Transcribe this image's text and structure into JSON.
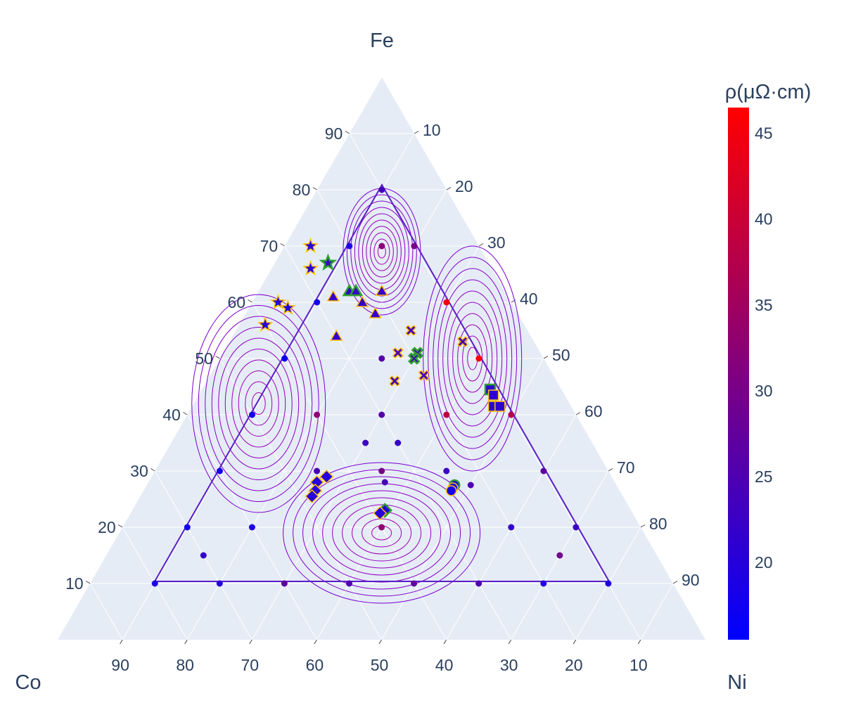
{
  "chart_data": {
    "type": "ternary-scatter-contour",
    "axes": {
      "top": {
        "title": "Fe",
        "ticks": [
          10,
          20,
          30,
          40,
          50,
          60,
          70,
          80,
          90
        ]
      },
      "left": {
        "title": "Co",
        "ticks": [
          10,
          20,
          30,
          40,
          50,
          60,
          70,
          80,
          90
        ]
      },
      "right": {
        "title": "Ni",
        "ticks": [
          10,
          20,
          30,
          40,
          50,
          60,
          70,
          80,
          90
        ]
      }
    },
    "background_color": "#e5ecf6",
    "grid": true,
    "colorbar": {
      "title": "ρ(μΩ·cm)",
      "range": [
        15.5,
        46.5
      ],
      "ticks": [
        20,
        25,
        30,
        35,
        40,
        45
      ],
      "colorscale": [
        "#0000ff",
        "#ff0000"
      ],
      "position": "right"
    },
    "grid_points": [
      {
        "fe": 80,
        "co": 10,
        "ni": 10,
        "rho": 24
      },
      {
        "fe": 70,
        "co": 20,
        "ni": 10,
        "rho": 19
      },
      {
        "fe": 70,
        "co": 10,
        "ni": 20,
        "rho": 30
      },
      {
        "fe": 70,
        "co": 15,
        "ni": 15,
        "rho": 32
      },
      {
        "fe": 60,
        "co": 30,
        "ni": 10,
        "rho": 18
      },
      {
        "fe": 60,
        "co": 10,
        "ni": 30,
        "rho": 45
      },
      {
        "fe": 50,
        "co": 40,
        "ni": 10,
        "rho": 17
      },
      {
        "fe": 50,
        "co": 10,
        "ni": 40,
        "rho": 46
      },
      {
        "fe": 50,
        "co": 25,
        "ni": 25,
        "rho": 26
      },
      {
        "fe": 40,
        "co": 50,
        "ni": 10,
        "rho": 18
      },
      {
        "fe": 40,
        "co": 10,
        "ni": 50,
        "rho": 38
      },
      {
        "fe": 40,
        "co": 30,
        "ni": 30,
        "rho": 26
      },
      {
        "fe": 40,
        "co": 40,
        "ni": 20,
        "rho": 33
      },
      {
        "fe": 40,
        "co": 20,
        "ni": 40,
        "rho": 38
      },
      {
        "fe": 35,
        "co": 35,
        "ni": 30,
        "rho": 23
      },
      {
        "fe": 35,
        "co": 30,
        "ni": 35,
        "rho": 22
      },
      {
        "fe": 30,
        "co": 60,
        "ni": 10,
        "rho": 18
      },
      {
        "fe": 30,
        "co": 10,
        "ni": 60,
        "rho": 27
      },
      {
        "fe": 30,
        "co": 35,
        "ni": 35,
        "rho": 30
      },
      {
        "fe": 30,
        "co": 25,
        "ni": 45,
        "rho": 23
      },
      {
        "fe": 30,
        "co": 45,
        "ni": 25,
        "rho": 24
      },
      {
        "fe": 20,
        "co": 70,
        "ni": 10,
        "rho": 18
      },
      {
        "fe": 20,
        "co": 10,
        "ni": 70,
        "rho": 23
      },
      {
        "fe": 20,
        "co": 60,
        "ni": 20,
        "rho": 19
      },
      {
        "fe": 20,
        "co": 20,
        "ni": 60,
        "rho": 22
      },
      {
        "fe": 20,
        "co": 40,
        "ni": 40,
        "rho": 33
      },
      {
        "fe": 15,
        "co": 70,
        "ni": 15,
        "rho": 22
      },
      {
        "fe": 15,
        "co": 15,
        "ni": 70,
        "rho": 29
      },
      {
        "fe": 10,
        "co": 80,
        "ni": 10,
        "rho": 19
      },
      {
        "fe": 10,
        "co": 70,
        "ni": 20,
        "rho": 20
      },
      {
        "fe": 10,
        "co": 60,
        "ni": 30,
        "rho": 27
      },
      {
        "fe": 10,
        "co": 50,
        "ni": 40,
        "rho": 25
      },
      {
        "fe": 10,
        "co": 40,
        "ni": 50,
        "rho": 27
      },
      {
        "fe": 10,
        "co": 30,
        "ni": 60,
        "rho": 25
      },
      {
        "fe": 10,
        "co": 20,
        "ni": 70,
        "rho": 20
      },
      {
        "fe": 10,
        "co": 10,
        "ni": 80,
        "rho": 19
      },
      {
        "fe": 28,
        "co": 35.5,
        "ni": 36.5,
        "rho": 24
      },
      {
        "fe": 27.5,
        "co": 22.5,
        "ni": 50,
        "rho": 25
      }
    ],
    "marker_groups": [
      {
        "symbol": "star",
        "points": [
          {
            "fe": 70,
            "co": 26,
            "ni": 4,
            "rho": 20
          },
          {
            "fe": 66,
            "co": 28,
            "ni": 6,
            "rho": 20
          },
          {
            "fe": 60,
            "co": 36,
            "ni": 4,
            "rho": 20
          },
          {
            "fe": 59,
            "co": 35,
            "ni": 6,
            "rho": 20
          },
          {
            "fe": 56,
            "co": 40,
            "ni": 4,
            "rho": 20
          },
          {
            "fe": 67,
            "co": 24.8,
            "ni": 8.2,
            "rho": 22,
            "highlight": true
          }
        ]
      },
      {
        "symbol": "triangle-up",
        "points": [
          {
            "fe": 62,
            "co": 24,
            "ni": 14,
            "rho": 22,
            "highlight": true
          },
          {
            "fe": 62,
            "co": 23,
            "ni": 15,
            "rho": 22,
            "highlight": true
          },
          {
            "fe": 61,
            "co": 27,
            "ni": 12,
            "rho": 22
          },
          {
            "fe": 62,
            "co": 19,
            "ni": 19,
            "rho": 22
          },
          {
            "fe": 60,
            "co": 23,
            "ni": 17,
            "rho": 22
          },
          {
            "fe": 58,
            "co": 22,
            "ni": 20,
            "rho": 22
          },
          {
            "fe": 54,
            "co": 30,
            "ni": 16,
            "rho": 22
          }
        ]
      },
      {
        "symbol": "x",
        "points": [
          {
            "fe": 55,
            "co": 18,
            "ni": 27,
            "rho": 24
          },
          {
            "fe": 51,
            "co": 22,
            "ni": 27,
            "rho": 24
          },
          {
            "fe": 51,
            "co": 19,
            "ni": 30,
            "rho": 24,
            "highlight": true
          },
          {
            "fe": 50,
            "co": 20,
            "ni": 30,
            "rho": 24,
            "highlight": true
          },
          {
            "fe": 47,
            "co": 20,
            "ni": 33,
            "rho": 24
          },
          {
            "fe": 46,
            "co": 25,
            "ni": 29,
            "rho": 24
          },
          {
            "fe": 53,
            "co": 11,
            "ni": 36,
            "rho": 24
          }
        ]
      },
      {
        "symbol": "square",
        "points": [
          {
            "fe": 44.5,
            "co": 11,
            "ni": 44.5,
            "rho": 21,
            "highlight": true
          },
          {
            "fe": 43.5,
            "co": 11,
            "ni": 45.5,
            "rho": 21
          },
          {
            "fe": 41.5,
            "co": 12,
            "ni": 46.5,
            "rho": 21
          },
          {
            "fe": 41.5,
            "co": 11,
            "ni": 47.5,
            "rho": 21
          }
        ]
      },
      {
        "symbol": "diamond",
        "points": [
          {
            "fe": 29,
            "co": 44,
            "ni": 27,
            "rho": 20
          },
          {
            "fe": 28,
            "co": 46,
            "ni": 26,
            "rho": 20
          },
          {
            "fe": 26.5,
            "co": 47,
            "ni": 26.5,
            "rho": 20
          },
          {
            "fe": 25.5,
            "co": 48,
            "ni": 26.5,
            "rho": 20
          },
          {
            "fe": 23,
            "co": 38,
            "ni": 39,
            "rho": 20,
            "highlight": true
          },
          {
            "fe": 22.5,
            "co": 39,
            "ni": 38.5,
            "rho": 20
          }
        ]
      },
      {
        "symbol": "circle",
        "points": [
          {
            "fe": 27.5,
            "co": 25,
            "ni": 47.5,
            "rho": 18,
            "highlight": true
          },
          {
            "fe": 27,
            "co": 25.5,
            "ni": 47.5,
            "rho": 18
          },
          {
            "fe": 26.5,
            "co": 26,
            "ni": 47.5,
            "rho": 18
          }
        ]
      }
    ],
    "contours": {
      "centers": [
        {
          "fe": 19,
          "co": 40.5,
          "ni": 40.5
        },
        {
          "fe": 42,
          "co": 48,
          "ni": 10
        },
        {
          "fe": 50,
          "co": 11,
          "ni": 39
        },
        {
          "fe": 69,
          "co": 15.5,
          "ni": 15.5
        }
      ]
    },
    "marker_style": {
      "edge_color": "#ffc20e",
      "highlight_edge_color": "#2ca02c"
    }
  }
}
